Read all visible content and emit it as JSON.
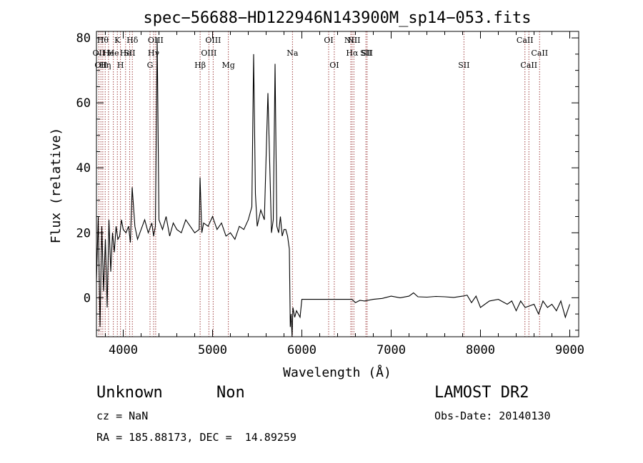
{
  "chart_data": {
    "type": "line",
    "title": "spec−56688−HD122946N143900M_sp14−053.fits",
    "xlabel": "Wavelength (Å)",
    "ylabel": "Flux (relative)",
    "xlim": [
      3700,
      9100
    ],
    "ylim": [
      -12,
      82
    ],
    "xticks": [
      4000,
      5000,
      6000,
      7000,
      8000,
      9000
    ],
    "yticks": [
      0,
      20,
      40,
      60,
      80
    ],
    "grid": false,
    "series": [
      {
        "x": [
          3700,
          3720,
          3740,
          3760,
          3780,
          3800,
          3820,
          3840,
          3860,
          3880,
          3900,
          3920,
          3940,
          3960,
          3980,
          4000,
          4030,
          4060,
          4080,
          4100,
          4130,
          4160,
          4200,
          4240,
          4280,
          4320,
          4340,
          4360,
          4380,
          4400,
          4440,
          4480,
          4520,
          4560,
          4600,
          4650,
          4700,
          4750,
          4800,
          4850,
          4860,
          4880,
          4900,
          4950,
          5000,
          5050,
          5100,
          5150,
          5200,
          5250,
          5300,
          5350,
          5400,
          5440,
          5460,
          5480,
          5500,
          5540,
          5580,
          5620,
          5660,
          5680,
          5700,
          5720,
          5740,
          5760,
          5780,
          5800,
          5820,
          5840,
          5860,
          5870,
          5880,
          5890,
          5900,
          5920,
          5940,
          5960,
          5980,
          6000,
          6100,
          6200,
          6300,
          6400,
          6500,
          6560,
          6600,
          6650,
          6700,
          6800,
          6900,
          7000,
          7100,
          7200,
          7250,
          7300,
          7400,
          7500,
          7600,
          7700,
          7800,
          7850,
          7900,
          7950,
          8000,
          8100,
          8200,
          8300,
          8350,
          8400,
          8450,
          8500,
          8600,
          8650,
          8700,
          8750,
          8800,
          8850,
          8900,
          8950,
          9000
        ],
        "y": [
          5,
          25,
          -9,
          22,
          2,
          18,
          -3,
          24,
          8,
          20,
          14,
          22,
          18,
          19,
          24,
          21,
          20,
          22,
          17,
          34,
          22,
          18,
          21,
          24,
          20,
          23,
          19,
          22,
          80,
          24,
          21,
          25,
          19,
          23,
          21,
          20,
          24,
          22,
          20,
          21,
          37,
          20,
          23,
          22,
          25,
          21,
          23,
          19,
          20,
          18,
          22,
          21,
          24,
          28,
          75,
          32,
          22,
          27,
          24,
          63,
          20,
          24,
          72,
          22,
          20,
          25,
          19,
          21,
          21,
          19,
          15,
          -9,
          -5,
          -12,
          -3,
          -6,
          -4,
          -5,
          -6,
          -0.5,
          -0.5,
          -0.5,
          -0.5,
          -0.5,
          -0.5,
          -0.5,
          -1.5,
          -0.8,
          -1,
          -0.5,
          -0.2,
          0.5,
          0,
          0.5,
          1.5,
          0.3,
          0.2,
          0.4,
          0.3,
          0.1,
          0.5,
          0.8,
          -1.5,
          0.5,
          -3,
          -1,
          -0.5,
          -2,
          -1,
          -4,
          -1,
          -3,
          -2,
          -5,
          -1,
          -3,
          -2,
          -4,
          -1,
          -6,
          -2
        ]
      }
    ],
    "lines": [
      {
        "x": 3727,
        "labels": [
          "OII"
        ],
        "row": 2
      },
      {
        "x": 3750,
        "labels": [
          "OII"
        ],
        "row": 3
      },
      {
        "x": 3771,
        "labels": [
          "Hθ"
        ],
        "row": 1
      },
      {
        "x": 3798,
        "labels": [
          "Hη"
        ],
        "row": 3
      },
      {
        "x": 3835,
        "labels": [
          "He"
        ],
        "row": 2
      },
      {
        "x": 3889,
        "labels": [
          "He"
        ],
        "row": 2
      },
      {
        "x": 3934,
        "labels": [
          "K"
        ],
        "row": 1
      },
      {
        "x": 3969,
        "labels": [
          "H"
        ],
        "row": 3
      },
      {
        "x": 4026,
        "labels": [
          "He"
        ],
        "row": 2
      },
      {
        "x": 4072,
        "labels": [
          "SII"
        ],
        "row": 2
      },
      {
        "x": 4102,
        "labels": [
          "Hδ"
        ],
        "row": 1
      },
      {
        "x": 4300,
        "labels": [
          "G"
        ],
        "row": 3
      },
      {
        "x": 4340,
        "labels": [
          "Hγ"
        ],
        "row": 2
      },
      {
        "x": 4363,
        "labels": [
          "OIII"
        ],
        "row": 1
      },
      {
        "x": 4861,
        "labels": [
          "Hβ"
        ],
        "row": 3
      },
      {
        "x": 4959,
        "labels": [
          "OIII"
        ],
        "row": 2
      },
      {
        "x": 5007,
        "labels": [
          "OIII"
        ],
        "row": 1
      },
      {
        "x": 5177,
        "labels": [
          "Mg"
        ],
        "row": 3
      },
      {
        "x": 5895,
        "labels": [
          "Na"
        ],
        "row": 2
      },
      {
        "x": 6300,
        "labels": [
          "OI"
        ],
        "row": 1
      },
      {
        "x": 6363,
        "labels": [
          "OI"
        ],
        "row": 3
      },
      {
        "x": 6548,
        "labels": [
          "NII"
        ],
        "row": 1
      },
      {
        "x": 6563,
        "labels": [
          "Hα"
        ],
        "row": 2
      },
      {
        "x": 6583,
        "labels": [
          "NII"
        ],
        "row": 1
      },
      {
        "x": 6717,
        "labels": [
          "SII"
        ],
        "row": 2
      },
      {
        "x": 6731,
        "labels": [
          "SII"
        ],
        "row": 2
      },
      {
        "x": 7815,
        "labels": [
          "SII"
        ],
        "row": 3
      },
      {
        "x": 8498,
        "labels": [
          "CaII"
        ],
        "row": 1
      },
      {
        "x": 8542,
        "labels": [
          "CaII"
        ],
        "row": 3
      },
      {
        "x": 8662,
        "labels": [
          "CaII"
        ],
        "row": 2
      }
    ]
  },
  "info": {
    "class_label": "Unknown",
    "subclass_label": "Non",
    "survey": "LAMOST DR2",
    "cz": "cz = NaN",
    "obs_date": "Obs-Date: 20140130",
    "coords": "RA = 185.88173, DEC =  14.89259"
  },
  "colors": {
    "line": "#000000",
    "marker": "#a04040"
  }
}
